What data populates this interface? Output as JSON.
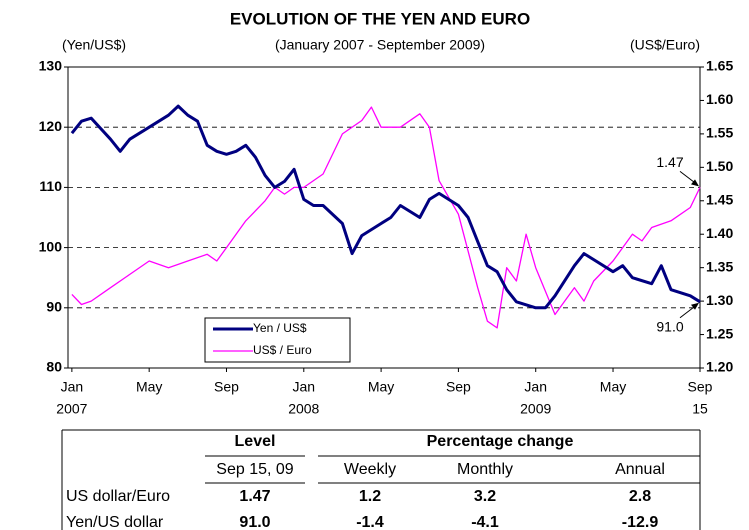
{
  "chart_data": {
    "type": "line",
    "title": "EVOLUTION OF THE YEN AND EURO",
    "subtitle": "(January 2007 - September 2009)",
    "ylabel": "(Yen/US$)",
    "y2label": "(US$/Euro)",
    "xlim": [
      -0.2,
      32.5
    ],
    "xticks": [
      {
        "value": 0,
        "label": "Jan"
      },
      {
        "value": 4,
        "label": "May"
      },
      {
        "value": 8,
        "label": "Sep"
      },
      {
        "value": 12,
        "label": "Jan"
      },
      {
        "value": 16,
        "label": "May"
      },
      {
        "value": 20,
        "label": "Sep"
      },
      {
        "value": 24,
        "label": "Jan"
      },
      {
        "value": 28,
        "label": "May"
      },
      {
        "value": 32.5,
        "label": "Sep"
      }
    ],
    "xtick_years": [
      {
        "value": 0,
        "label": "2007"
      },
      {
        "value": 12,
        "label": "2008"
      },
      {
        "value": 24,
        "label": "2009"
      },
      {
        "value": 32.5,
        "label": "15"
      }
    ],
    "ylim": [
      80,
      130
    ],
    "yticks": [
      80,
      90,
      100,
      110,
      120,
      130
    ],
    "y2lim": [
      1.2,
      1.65
    ],
    "y2ticks": [
      {
        "value": 1.2,
        "label": "1.20"
      },
      1.25,
      {
        "value": 1.3,
        "label": "1.30"
      },
      1.35,
      {
        "value": 1.4,
        "label": "1.40"
      },
      1.45,
      {
        "value": 1.5,
        "label": "1.50"
      },
      1.55,
      {
        "value": 1.6,
        "label": "1.60"
      },
      1.65
    ],
    "grid": true,
    "legend": "lower left",
    "series": [
      {
        "name": "Yen / US$",
        "color": "#000080",
        "x": [
          0,
          0.5,
          1,
          2,
          2.5,
          3,
          3.5,
          4,
          5,
          5.5,
          6,
          6.5,
          7,
          7.5,
          8,
          8.5,
          9,
          9.5,
          10,
          10.5,
          11,
          11.5,
          12,
          12.5,
          13,
          14,
          14.5,
          15,
          16,
          16.5,
          17,
          18,
          18.5,
          19,
          20,
          20.5,
          21,
          21.5,
          22,
          22.5,
          23,
          24,
          24.5,
          25,
          26,
          26.5,
          27,
          28,
          28.5,
          29,
          30,
          30.5,
          31,
          32,
          32.5
        ],
        "values": [
          119,
          121,
          121.5,
          118,
          116,
          118,
          119,
          120,
          122,
          123.5,
          122,
          121,
          117,
          116,
          115.5,
          116,
          117,
          115,
          112,
          110,
          111,
          113,
          108,
          107,
          107,
          104,
          99,
          102,
          104,
          105,
          107,
          105,
          108,
          109,
          107,
          105,
          101,
          97,
          96,
          93,
          91,
          90,
          90,
          92,
          97,
          99,
          98,
          96,
          97,
          95,
          94,
          97,
          93,
          92,
          91.0
        ]
      },
      {
        "name": "US$ / Euro",
        "color": "#ff00ff",
        "axis": "y2",
        "x": [
          0,
          0.5,
          1,
          2,
          3,
          4,
          5,
          6,
          7,
          7.5,
          8,
          9,
          10,
          10.5,
          11,
          11.5,
          12,
          13,
          14,
          15,
          15.5,
          16,
          17,
          18,
          18.5,
          19,
          20,
          21,
          21.5,
          22,
          22.5,
          23,
          23.5,
          24,
          25,
          26,
          26.5,
          27,
          28,
          29,
          29.5,
          30,
          31,
          32,
          32.5
        ],
        "values": [
          1.31,
          1.295,
          1.3,
          1.32,
          1.34,
          1.36,
          1.35,
          1.36,
          1.37,
          1.36,
          1.38,
          1.42,
          1.45,
          1.47,
          1.46,
          1.47,
          1.47,
          1.49,
          1.55,
          1.57,
          1.59,
          1.56,
          1.56,
          1.58,
          1.56,
          1.48,
          1.43,
          1.32,
          1.27,
          1.26,
          1.35,
          1.33,
          1.4,
          1.35,
          1.28,
          1.32,
          1.3,
          1.33,
          1.36,
          1.4,
          1.39,
          1.41,
          1.42,
          1.44,
          1.47
        ]
      }
    ],
    "annotations": [
      {
        "text": "1.47",
        "x": 32.5,
        "y": 1.47,
        "axis": "y2"
      },
      {
        "text": "91.0",
        "x": 32.5,
        "y": 91.0
      }
    ]
  },
  "table": {
    "group_headers": [
      "Level",
      "Percentage change"
    ],
    "columns": [
      "Sep 15, 09",
      "Weekly",
      "Monthly",
      "Annual"
    ],
    "rows": [
      [
        "US dollar/Euro",
        "1.47",
        "1.2",
        "3.2",
        "2.8"
      ],
      [
        "Yen/US dollar",
        "91.0",
        "-1.4",
        "-4.1",
        "-12.9"
      ]
    ]
  }
}
